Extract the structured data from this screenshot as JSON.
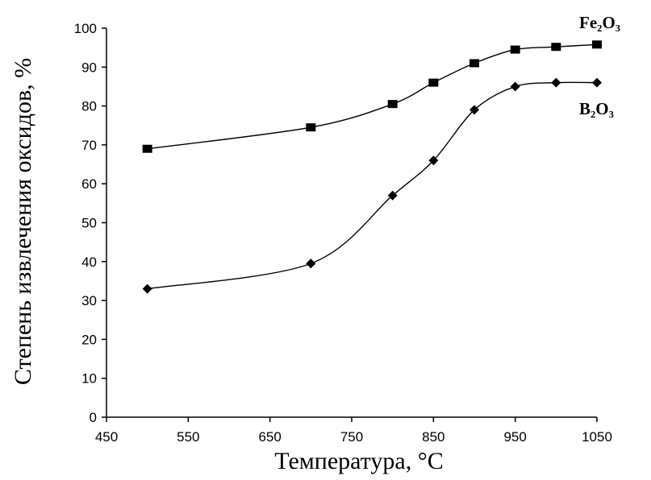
{
  "chart_data": {
    "type": "line",
    "xlabel": "Температура, °С",
    "ylabel": "Степень извлечения оксидов, %",
    "xlim": [
      450,
      1050
    ],
    "ylim": [
      0,
      100
    ],
    "x_ticks": [
      450,
      550,
      650,
      750,
      850,
      950,
      1050
    ],
    "y_ticks": [
      0,
      10,
      20,
      30,
      40,
      50,
      60,
      70,
      80,
      90,
      100
    ],
    "grid": false,
    "series": [
      {
        "name": "Fe₂O₃",
        "marker": "square",
        "x": [
          500,
          700,
          800,
          850,
          900,
          950,
          1000,
          1050
        ],
        "values": [
          69,
          74.5,
          80.5,
          86,
          91,
          94.5,
          95.2,
          95.8
        ]
      },
      {
        "name": "B₂O₃",
        "marker": "diamond",
        "x": [
          500,
          700,
          800,
          850,
          900,
          950,
          1000,
          1050
        ],
        "values": [
          33,
          39.5,
          57,
          66,
          79,
          85,
          86,
          86
        ]
      }
    ]
  }
}
